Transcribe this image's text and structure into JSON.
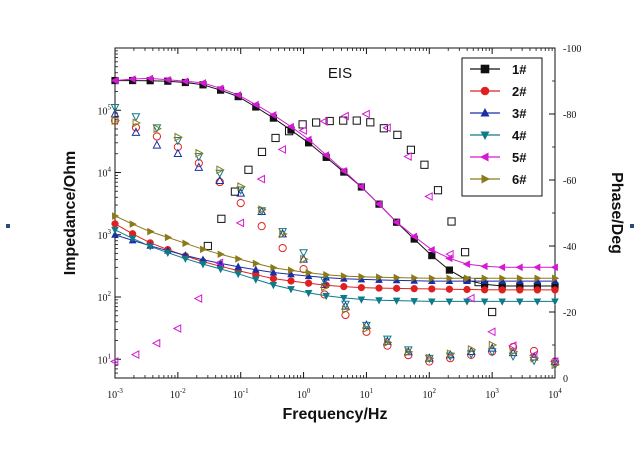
{
  "chart_data": {
    "type": "scatter",
    "title": "EIS",
    "xlabel": "Frequency/Hz",
    "ylabel_left": "Impedance/Ohm",
    "ylabel_right": "Phase/Deg",
    "x_scale": "log",
    "xlim": [
      0.001,
      10000
    ],
    "y_left_scale": "log",
    "y_left_lim": [
      5,
      1000000
    ],
    "y_right_lim": [
      0,
      -100
    ],
    "x_ticks": [
      {
        "base": "10",
        "exp": "-3",
        "value": 0.001
      },
      {
        "base": "10",
        "exp": "-2",
        "value": 0.01
      },
      {
        "base": "10",
        "exp": "-1",
        "value": 0.1
      },
      {
        "base": "10",
        "exp": "0",
        "value": 1
      },
      {
        "base": "10",
        "exp": "1",
        "value": 10
      },
      {
        "base": "10",
        "exp": "2",
        "value": 100
      },
      {
        "base": "10",
        "exp": "3",
        "value": 1000
      },
      {
        "base": "10",
        "exp": "4",
        "value": 10000
      }
    ],
    "y_left_ticks": [
      {
        "base": "10",
        "exp": "1",
        "value": 10
      },
      {
        "base": "10",
        "exp": "2",
        "value": 100
      },
      {
        "base": "10",
        "exp": "3",
        "value": 1000
      },
      {
        "base": "10",
        "exp": "4",
        "value": 10000
      },
      {
        "base": "10",
        "exp": "5",
        "value": 100000
      }
    ],
    "y_right_ticks": [
      "0",
      "-20",
      "-40",
      "-60",
      "-80",
      "-100"
    ],
    "legend_position": "top-right",
    "series": [
      {
        "name": "1#",
        "color": "#111111",
        "marker": "square",
        "impedance": {
          "x": [
            0.001,
            0.003,
            0.01,
            0.03,
            0.1,
            0.3,
            1,
            3,
            10,
            30,
            100,
            300,
            1000,
            3000,
            10000
          ],
          "y": [
            300000,
            300000,
            290000,
            250000,
            160000,
            80000,
            35000,
            14000,
            5000,
            1600,
            500,
            200,
            150,
            150,
            150
          ]
        },
        "phase": {
          "x": [
            0.03,
            0.1,
            0.3,
            1,
            3,
            10,
            30,
            100,
            300,
            1000
          ],
          "y": [
            -40,
            -60,
            -72,
            -77,
            -78,
            -78,
            -74,
            -63,
            -42,
            -20
          ]
        }
      },
      {
        "name": "2#",
        "color": "#e02020",
        "marker": "circle",
        "impedance": {
          "x": [
            0.001,
            0.003,
            0.01,
            0.03,
            0.1,
            0.3,
            1,
            3,
            10,
            100,
            1000,
            10000
          ],
          "y": [
            1500,
            800,
            500,
            350,
            260,
            200,
            170,
            150,
            140,
            135,
            130,
            130
          ]
        },
        "phase": {
          "x": [
            0.001,
            0.003,
            0.01,
            0.03,
            0.1,
            0.3,
            1,
            3,
            10,
            30,
            100,
            1000,
            3000,
            10000
          ],
          "y": [
            -78,
            -75,
            -70,
            -63,
            -53,
            -43,
            -33,
            -22,
            -14,
            -8,
            -5,
            -8,
            -10,
            -5
          ]
        }
      },
      {
        "name": "3#",
        "color": "#1a2ea6",
        "marker": "triangle-up",
        "impedance": {
          "x": [
            0.001,
            0.003,
            0.01,
            0.03,
            0.1,
            0.3,
            1,
            3,
            10,
            100,
            1000,
            10000
          ],
          "y": [
            1000,
            700,
            500,
            380,
            300,
            250,
            220,
            200,
            190,
            180,
            180,
            180
          ]
        },
        "phase": {
          "x": [
            0.001,
            0.003,
            0.01,
            0.03,
            0.1,
            0.3,
            1,
            3,
            10,
            30,
            100,
            1000,
            10000
          ],
          "y": [
            -80,
            -72,
            -68,
            -62,
            -56,
            -48,
            -36,
            -25,
            -16,
            -9,
            -6,
            -9,
            -5
          ]
        }
      },
      {
        "name": "4#",
        "color": "#0f7a8a",
        "marker": "triangle-down",
        "impedance": {
          "x": [
            0.001,
            0.003,
            0.01,
            0.03,
            0.1,
            0.3,
            1,
            3,
            10,
            100,
            1000,
            10000
          ],
          "y": [
            1200,
            700,
            450,
            320,
            230,
            160,
            120,
            100,
            90,
            85,
            85,
            85
          ]
        },
        "phase": {
          "x": [
            0.001,
            0.003,
            0.01,
            0.03,
            0.1,
            0.3,
            1,
            3,
            10,
            30,
            100,
            1000,
            10000
          ],
          "y": [
            -82,
            -78,
            -72,
            -65,
            -57,
            -48,
            -38,
            -26,
            -16,
            -10,
            -6,
            -8,
            -4
          ]
        }
      },
      {
        "name": "5#",
        "color": "#d41ad4",
        "marker": "triangle-left",
        "impedance": {
          "x": [
            0.001,
            0.003,
            0.01,
            0.03,
            0.1,
            0.3,
            1,
            3,
            10,
            30,
            100,
            300,
            1000,
            3000,
            10000
          ],
          "y": [
            300000,
            330000,
            300000,
            270000,
            170000,
            90000,
            40000,
            15000,
            5000,
            1600,
            600,
            350,
            300,
            300,
            300
          ]
        },
        "phase": {
          "x": [
            0.001,
            0.003,
            0.01,
            0.03,
            0.1,
            0.3,
            1,
            3,
            10,
            30,
            100,
            300,
            1000,
            3000,
            10000
          ],
          "y": [
            -5,
            -8,
            -15,
            -28,
            -47,
            -66,
            -75,
            -79,
            -80,
            -74,
            -55,
            -30,
            -14,
            -8,
            -5
          ]
        }
      },
      {
        "name": "6#",
        "color": "#8a7a1a",
        "marker": "triangle-right",
        "impedance": {
          "x": [
            0.001,
            0.003,
            0.01,
            0.03,
            0.1,
            0.3,
            1,
            3,
            10,
            100,
            1000,
            10000
          ],
          "y": [
            2000,
            1200,
            800,
            550,
            400,
            300,
            250,
            220,
            210,
            200,
            200,
            200
          ]
        },
        "phase": {
          "x": [
            0.001,
            0.003,
            0.01,
            0.03,
            0.1,
            0.3,
            1,
            3,
            10,
            30,
            100,
            1000,
            10000
          ],
          "y": [
            -78,
            -77,
            -73,
            -66,
            -58,
            -48,
            -36,
            -24,
            -15,
            -9,
            -6,
            -10,
            -4
          ]
        }
      }
    ]
  }
}
